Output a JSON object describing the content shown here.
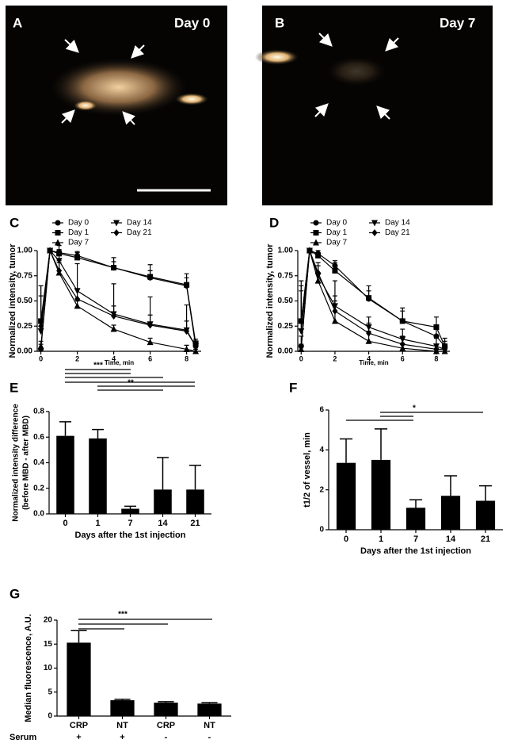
{
  "images": [
    {
      "panel": "A",
      "caption": "Day 0"
    },
    {
      "panel": "B",
      "caption": "Day 7"
    }
  ],
  "chart_data": [
    {
      "panel": "C",
      "type": "line",
      "ylabel": "Normalized intensity, tumor",
      "xlabel": "Time, min",
      "x": [
        0,
        0.5,
        1,
        2,
        4,
        6,
        8,
        8.5
      ],
      "xlim": [
        -0.2,
        8.8
      ],
      "xticks": [
        0,
        2,
        4,
        6,
        8
      ],
      "ylim": [
        0,
        1
      ],
      "yticks": [
        {
          "value": 0,
          "label": "0.00"
        },
        {
          "value": 0.25,
          "label": "0.25"
        },
        {
          "value": 0.5,
          "label": "0.50"
        },
        {
          "value": 0.75,
          "label": "0.75"
        },
        {
          "value": 1,
          "label": "1.00"
        }
      ],
      "series": [
        {
          "name": "Day 0",
          "marker": "circle",
          "color": "#000000",
          "values": [
            0.02,
            1,
            0.98,
            0.95,
            0.83,
            0.73,
            0.65,
            0.05
          ],
          "errors": [
            0.05,
            0,
            0.03,
            0.04,
            0.1,
            0.13,
            0.12,
            0.05
          ]
        },
        {
          "name": "Day 1",
          "marker": "square",
          "color": "#000000",
          "values": [
            0.3,
            1,
            0.97,
            0.93,
            0.83,
            0.74,
            0.66,
            0.08
          ],
          "errors": [
            0.35,
            0,
            0.03,
            0.05,
            0.06,
            0.06,
            0.07,
            0.04
          ]
        },
        {
          "name": "Day 7",
          "marker": "triangle-up",
          "color": "#000000",
          "values": [
            0.05,
            1,
            0.78,
            0.45,
            0.22,
            0.09,
            0.02,
            0
          ],
          "errors": [
            0.05,
            0,
            0.1,
            0.05,
            0.04,
            0.04,
            0.04,
            0.02
          ]
        },
        {
          "name": "Day 14",
          "marker": "triangle-down",
          "color": "#000000",
          "values": [
            0.2,
            1,
            0.9,
            0.6,
            0.37,
            0.27,
            0.21,
            0.05
          ],
          "errors": [
            0.45,
            0,
            0.15,
            0.27,
            0.3,
            0.27,
            0.25,
            0.05
          ]
        },
        {
          "name": "Day 21",
          "marker": "diamond",
          "color": "#000000",
          "values": [
            0.25,
            1,
            0.8,
            0.52,
            0.35,
            0.26,
            0.2,
            0.05
          ],
          "errors": [
            0.3,
            0,
            0.1,
            0.1,
            0.1,
            0.1,
            0.1,
            0.04
          ]
        }
      ]
    },
    {
      "panel": "D",
      "type": "line",
      "ylabel": "Normalized intensity, tumor",
      "xlabel": "Time, min",
      "x": [
        0,
        0.5,
        1,
        2,
        4,
        6,
        8,
        8.5
      ],
      "xlim": [
        -0.2,
        8.8
      ],
      "xticks": [
        0,
        2,
        4,
        6,
        8
      ],
      "ylim": [
        0,
        1
      ],
      "yticks": [
        {
          "value": 0,
          "label": "0.00"
        },
        {
          "value": 0.25,
          "label": "0.25"
        },
        {
          "value": 0.5,
          "label": "0.50"
        },
        {
          "value": 0.75,
          "label": "0.75"
        },
        {
          "value": 1,
          "label": "1.00"
        }
      ],
      "series": [
        {
          "name": "Day 0",
          "marker": "circle",
          "color": "#000000",
          "values": [
            0.05,
            1,
            0.97,
            0.85,
            0.52,
            0.3,
            0.15,
            0.05
          ],
          "errors": [
            0.1,
            0,
            0.03,
            0.05,
            0.08,
            0.1,
            0.08,
            0.05
          ]
        },
        {
          "name": "Day 1",
          "marker": "square",
          "color": "#000000",
          "values": [
            0.3,
            1,
            0.95,
            0.8,
            0.53,
            0.3,
            0.24,
            0.05
          ],
          "errors": [
            0.35,
            0,
            0.03,
            0.08,
            0.12,
            0.13,
            0.1,
            0.08
          ]
        },
        {
          "name": "Day 7",
          "marker": "triangle-up",
          "color": "#000000",
          "values": [
            0.02,
            1,
            0.7,
            0.3,
            0.1,
            0.03,
            0,
            0
          ],
          "errors": [
            0.05,
            0,
            0.15,
            0.4,
            0.1,
            0.05,
            0.03,
            0.03
          ]
        },
        {
          "name": "Day 14",
          "marker": "triangle-down",
          "color": "#000000",
          "values": [
            0.2,
            1,
            0.75,
            0.45,
            0.24,
            0.12,
            0.05,
            0.02
          ],
          "errors": [
            0.5,
            0,
            0.1,
            0.1,
            0.1,
            0.1,
            0.08,
            0.05
          ]
        },
        {
          "name": "Day 21",
          "marker": "diamond",
          "color": "#000000",
          "values": [
            0.3,
            1,
            0.78,
            0.4,
            0.18,
            0.07,
            0.02,
            0.02
          ],
          "errors": [
            0.3,
            0,
            0.1,
            0.1,
            0.1,
            0.08,
            0.05,
            0.05
          ]
        }
      ]
    },
    {
      "panel": "E",
      "type": "bar",
      "ylabel": [
        "Normalized intensity difference",
        "(before MBD - after MBD)"
      ],
      "xlabel": "Days after the 1st injection",
      "categories": [
        "0",
        "1",
        "7",
        "14",
        "21"
      ],
      "values": [
        0.61,
        0.59,
        0.04,
        0.19,
        0.19
      ],
      "errors": [
        0.11,
        0.07,
        0.02,
        0.25,
        0.19
      ],
      "color": "#000000",
      "ylim": [
        0,
        0.8
      ],
      "yticks": [
        {
          "value": 0,
          "label": "0.0"
        },
        {
          "value": 0.2,
          "label": "0.2"
        },
        {
          "value": 0.4,
          "label": "0.4"
        },
        {
          "value": 0.6,
          "label": "0.6"
        },
        {
          "value": 0.8,
          "label": "0.8"
        }
      ],
      "annotations": [
        "***",
        "**"
      ]
    },
    {
      "panel": "F",
      "type": "bar",
      "ylabel": "t1/2 of vessel, min",
      "xlabel": "Days after the 1st injection",
      "categories": [
        "0",
        "1",
        "7",
        "14",
        "21"
      ],
      "values": [
        3.35,
        3.5,
        1.1,
        1.7,
        1.45
      ],
      "errors": [
        1.2,
        1.55,
        0.4,
        1.0,
        0.75
      ],
      "color": "#000000",
      "ylim": [
        0,
        6
      ],
      "yticks": [
        0,
        2,
        4,
        6
      ],
      "annotations": [
        "*"
      ]
    },
    {
      "panel": "G",
      "type": "bar",
      "ylabel": "Median fluorescence, A.U.",
      "categories": [
        "CRP",
        "NT",
        "CRP",
        "NT"
      ],
      "values": [
        15.3,
        3.3,
        2.8,
        2.6
      ],
      "errors": [
        2.5,
        0.2,
        0.2,
        0.2
      ],
      "color": "#000000",
      "ylim": [
        0,
        20
      ],
      "yticks": [
        0,
        5,
        10,
        15,
        20
      ],
      "annotations": [
        "***"
      ],
      "serum": {
        "label": "Serum",
        "values": [
          "+",
          "+",
          "-",
          "-"
        ]
      }
    }
  ]
}
